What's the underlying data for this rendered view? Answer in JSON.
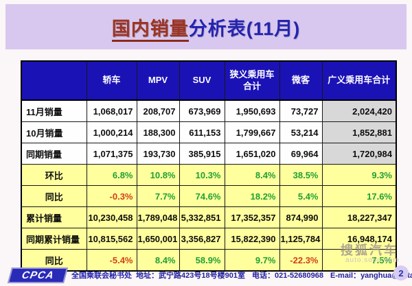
{
  "title": {
    "highlight": "国内销量",
    "rest": "分析表(11月)"
  },
  "table": {
    "columns": [
      "",
      "轿车",
      "MPV",
      "SUV",
      "狭义乘用车合计",
      "微客",
      "广义乘用车合计"
    ],
    "rows": [
      {
        "label": "11月销量",
        "labelAlign": "left",
        "rowBg": "white",
        "lastGray": true,
        "values": [
          "1,068,017",
          "208,707",
          "673,969",
          "1,950,693",
          "73,727",
          "2,024,420"
        ],
        "colors": [
          "k",
          "k",
          "k",
          "k",
          "k",
          "k"
        ]
      },
      {
        "label": "10月销量",
        "labelAlign": "left",
        "rowBg": "white",
        "lastGray": true,
        "values": [
          "1,000,214",
          "188,300",
          "611,153",
          "1,799,667",
          "53,214",
          "1,852,881"
        ],
        "colors": [
          "k",
          "k",
          "k",
          "k",
          "k",
          "k"
        ]
      },
      {
        "label": "同期销量",
        "labelAlign": "left",
        "rowBg": "white",
        "lastGray": true,
        "values": [
          "1,071,375",
          "193,730",
          "385,915",
          "1,651,020",
          "69,964",
          "1,720,984"
        ],
        "colors": [
          "k",
          "k",
          "k",
          "k",
          "k",
          "k"
        ]
      },
      {
        "label": "环比",
        "labelAlign": "center",
        "rowBg": "yellow",
        "lastGray": false,
        "values": [
          "6.8%",
          "10.8%",
          "10.3%",
          "8.4%",
          "38.5%",
          "9.3%"
        ],
        "colors": [
          "g",
          "g",
          "g",
          "g",
          "g",
          "g"
        ]
      },
      {
        "label": "同比",
        "labelAlign": "center",
        "rowBg": "yellow",
        "lastGray": false,
        "values": [
          "-0.3%",
          "7.7%",
          "74.6%",
          "18.2%",
          "5.4%",
          "17.6%"
        ],
        "colors": [
          "r",
          "g",
          "g",
          "g",
          "g",
          "g"
        ]
      },
      {
        "label": "累计销量",
        "labelAlign": "left",
        "rowBg": "yellow",
        "lastGray": false,
        "values": [
          "10,230,458",
          "1,789,048",
          "5,332,851",
          "17,352,357",
          "874,990",
          "18,227,347"
        ],
        "colors": [
          "k",
          "k",
          "k",
          "k",
          "k",
          "k"
        ]
      },
      {
        "label": "同期累计销量",
        "labelAlign": "left",
        "rowBg": "yellow",
        "lastGray": false,
        "values": [
          "10,815,562",
          "1,650,001",
          "3,356,827",
          "15,822,390",
          "1,125,784",
          "16,948,174"
        ],
        "colors": [
          "k",
          "k",
          "k",
          "k",
          "k",
          "k"
        ]
      },
      {
        "label": "同比",
        "labelAlign": "center",
        "rowBg": "yellow",
        "lastGray": false,
        "values": [
          "-5.4%",
          "8.4%",
          "58.9%",
          "9.7%",
          "-22.3%",
          "7.5%"
        ],
        "colors": [
          "r",
          "g",
          "g",
          "g",
          "r",
          "g"
        ]
      }
    ]
  },
  "chart_data": {
    "type": "table",
    "title": "国内销量分析表(11月)",
    "columns": [
      "轿车",
      "MPV",
      "SUV",
      "狭义乘用车合计",
      "微客",
      "广义乘用车合计"
    ],
    "rows": [
      {
        "label": "11月销量",
        "values": [
          1068017,
          208707,
          673969,
          1950693,
          73727,
          2024420
        ]
      },
      {
        "label": "10月销量",
        "values": [
          1000214,
          188300,
          611153,
          1799667,
          53214,
          1852881
        ]
      },
      {
        "label": "同期销量",
        "values": [
          1071375,
          193730,
          385915,
          1651020,
          69964,
          1720984
        ]
      },
      {
        "label": "环比",
        "values_pct": [
          6.8,
          10.8,
          10.3,
          8.4,
          38.5,
          9.3
        ]
      },
      {
        "label": "同比",
        "values_pct": [
          -0.3,
          7.7,
          74.6,
          18.2,
          5.4,
          17.6
        ]
      },
      {
        "label": "累计销量",
        "values": [
          10230458,
          1789048,
          5332851,
          17352357,
          874990,
          18227347
        ]
      },
      {
        "label": "同期累计销量",
        "values": [
          10815562,
          1650001,
          3356827,
          15822390,
          1125784,
          16948174
        ]
      },
      {
        "label": "同比",
        "values_pct": [
          -5.4,
          8.4,
          58.9,
          9.7,
          -22.3,
          7.5
        ]
      }
    ]
  },
  "watermark": {
    "line1": "搜狐汽车",
    "line2": "auto.sohu.com"
  },
  "footer": {
    "logo": "CPCA",
    "org": "全国乘联会秘书处",
    "address_label": "地址：",
    "address": "武宁路423号18号楼901室",
    "phone_label": "电话：",
    "phone": "021-52680968",
    "email_label": "E-mail：",
    "email": "yanghua@sxtauto.com.cn",
    "page": "2"
  },
  "colors": {
    "banner_bg": "#d8c8ef",
    "header_bg": "#1b12b6",
    "yellow_row": "#ffff9e",
    "gray_cell": "#d8d8d8",
    "positive_green": "#1fa033",
    "negative_red": "#d04018",
    "title_red": "#9c3424",
    "title_blue": "#2424ae"
  }
}
